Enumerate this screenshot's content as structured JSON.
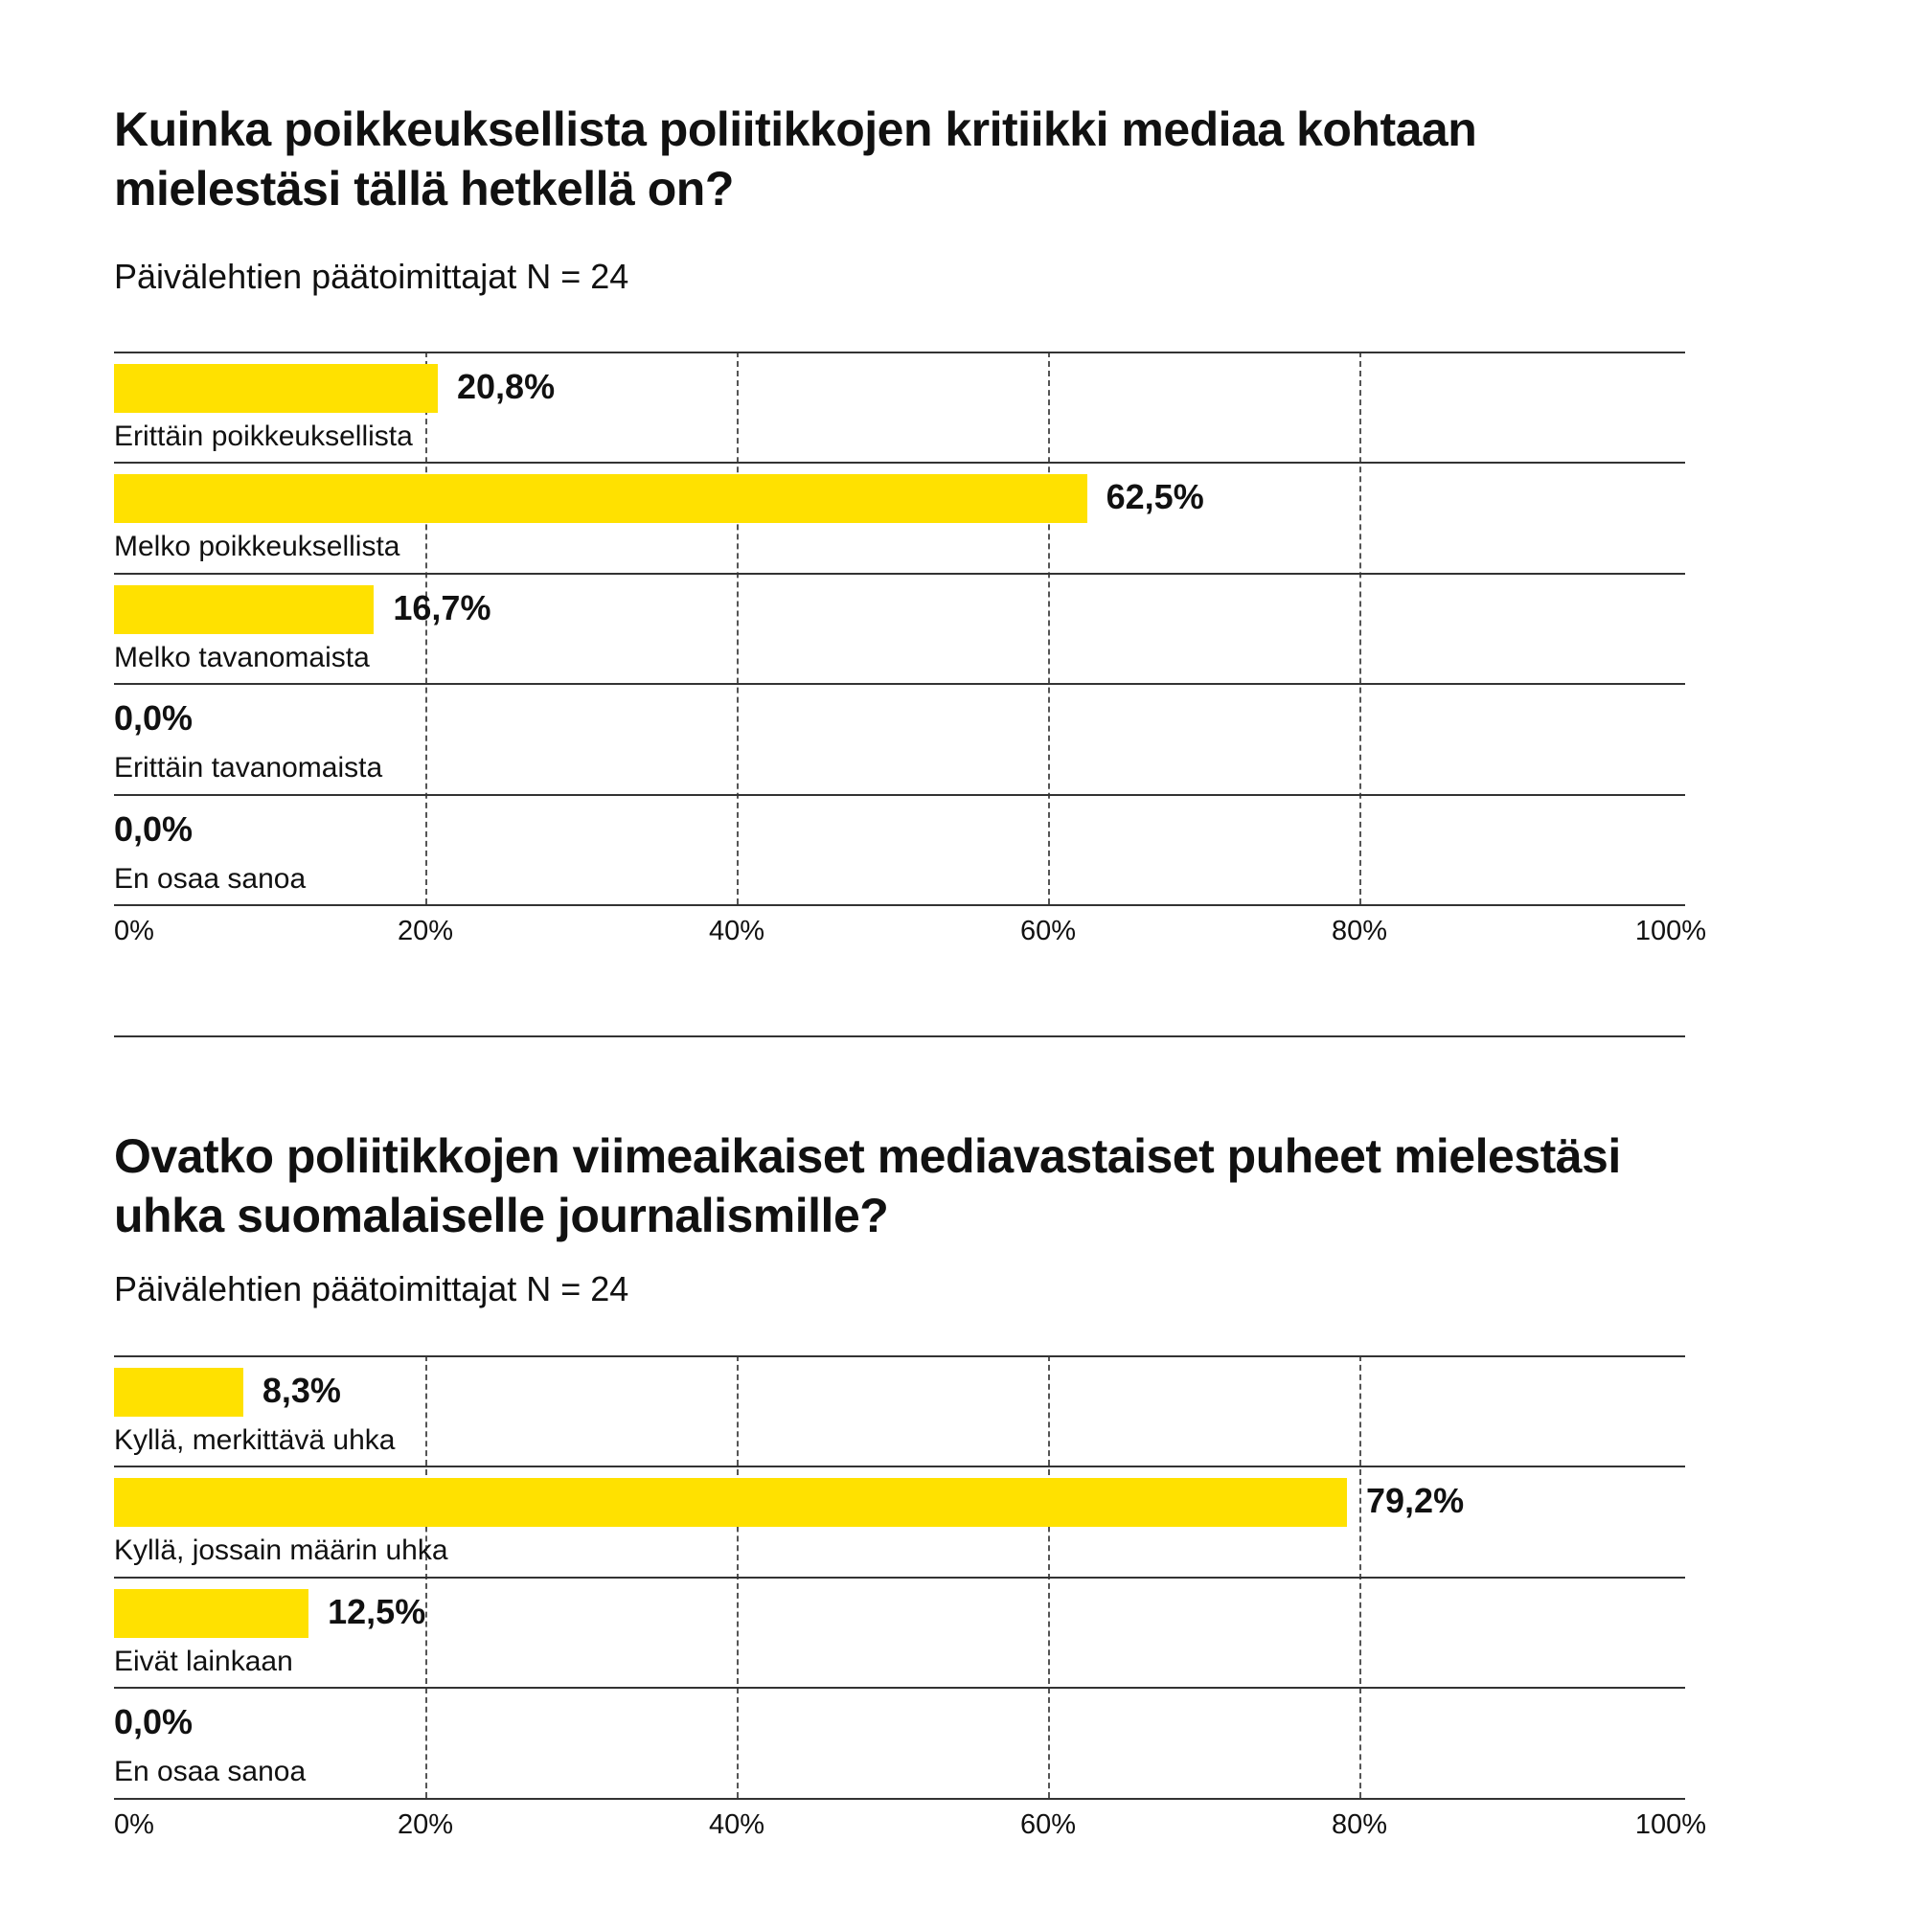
{
  "chart_data": [
    {
      "type": "bar",
      "orientation": "horizontal",
      "title": "Kuinka poikkeuksellista poliitikkojen kritiikki mediaa kohtaan mielestäsi tällä hetkellä on?",
      "subtitle": "Päivälehtien päätoimittajat N = 24",
      "categories": [
        "Erittäin poikkeuksellista",
        "Melko poikkeuksellista",
        "Melko tavanomaista",
        "Erittäin tavanomaista",
        "En osaa sanoa"
      ],
      "values": [
        20.8,
        62.5,
        16.7,
        0.0,
        0.0
      ],
      "value_labels": [
        "20,8%",
        "62,5%",
        "16,7%",
        "0,0%",
        "0,0%"
      ],
      "xlim": [
        0,
        100
      ],
      "ticks": [
        "0%",
        "20%",
        "40%",
        "60%",
        "80%",
        "100%"
      ],
      "color": "#FFE100"
    },
    {
      "type": "bar",
      "orientation": "horizontal",
      "title": "Ovatko poliitikkojen viimeaikaiset mediavastaiset puheet mielestäsi uhka suomalaiselle journalismille?",
      "subtitle": "Päivälehtien päätoimittajat N = 24",
      "categories": [
        "Kyllä, merkittävä uhka",
        "Kyllä, jossain määrin uhka",
        "Eivät lainkaan",
        "En osaa sanoa"
      ],
      "values": [
        8.3,
        79.2,
        12.5,
        0.0
      ],
      "value_labels": [
        "8,3%",
        "79,2%",
        "12,5%",
        "0,0%"
      ],
      "xlim": [
        0,
        100
      ],
      "ticks": [
        "0%",
        "20%",
        "40%",
        "60%",
        "80%",
        "100%"
      ],
      "color": "#FFE100"
    }
  ]
}
